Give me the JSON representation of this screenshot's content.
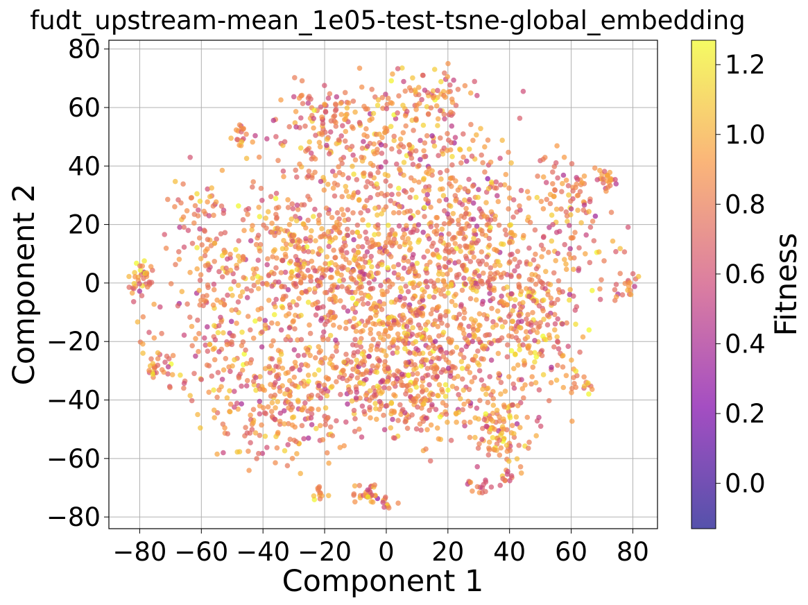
{
  "chart_data": {
    "type": "scatter",
    "title": "fudt_upstream-mean_1e05-test-tsne-global_embedding",
    "xlabel": "Component 1",
    "ylabel": "Component 2",
    "xlim": [
      -90,
      88
    ],
    "ylim": [
      -84,
      83
    ],
    "xticks": [
      -80,
      -60,
      -40,
      -20,
      0,
      20,
      40,
      60,
      80
    ],
    "yticks": [
      -80,
      -60,
      -40,
      -20,
      0,
      20,
      40,
      60,
      80
    ],
    "xtick_labels": [
      "−80",
      "−60",
      "−40",
      "−20",
      "0",
      "20",
      "40",
      "60",
      "80"
    ],
    "ytick_labels": [
      "−80",
      "−60",
      "−40",
      "−20",
      "0",
      "20",
      "40",
      "60",
      "80"
    ],
    "grid": true,
    "colorbar": {
      "label": "Fitness",
      "colormap": "plasma",
      "range": [
        -0.13,
        1.27
      ],
      "ticks": [
        0.0,
        0.2,
        0.4,
        0.6,
        0.8,
        1.0,
        1.2
      ],
      "tick_labels": [
        "0.0",
        "0.2",
        "0.4",
        "0.6",
        "0.8",
        "1.0",
        "1.2"
      ]
    },
    "point_alpha": 0.7,
    "clusters": [
      {
        "center": [
          -2,
          48
        ],
        "spread": [
          15,
          12
        ],
        "count": 260
      },
      {
        "center": [
          -32,
          12
        ],
        "spread": [
          14,
          13
        ],
        "count": 280
      },
      {
        "center": [
          25,
          20
        ],
        "spread": [
          16,
          14
        ],
        "count": 320
      },
      {
        "center": [
          45,
          0
        ],
        "spread": [
          14,
          12
        ],
        "count": 220
      },
      {
        "center": [
          -35,
          -40
        ],
        "spread": [
          12,
          10
        ],
        "count": 260
      },
      {
        "center": [
          0,
          -35
        ],
        "spread": [
          11,
          10
        ],
        "count": 220
      },
      {
        "center": [
          22,
          -30
        ],
        "spread": [
          12,
          10
        ],
        "count": 180
      },
      {
        "center": [
          -10,
          0
        ],
        "spread": [
          16,
          15
        ],
        "count": 380
      },
      {
        "center": [
          10,
          -10
        ],
        "spread": [
          18,
          15
        ],
        "count": 300
      },
      {
        "center": [
          -55,
          -10
        ],
        "spread": [
          8,
          14
        ],
        "count": 110
      },
      {
        "center": [
          -78,
          -30
        ],
        "spread": [
          5,
          7
        ],
        "count": 90
      },
      {
        "center": [
          -80,
          2
        ],
        "spread": [
          2.5,
          3
        ],
        "count": 40
      },
      {
        "center": [
          37,
          -52
        ],
        "spread": [
          5,
          6
        ],
        "count": 90
      },
      {
        "center": [
          72,
          36
        ],
        "spread": [
          2,
          2
        ],
        "count": 25
      },
      {
        "center": [
          78,
          -2
        ],
        "spread": [
          2,
          3
        ],
        "count": 20
      },
      {
        "center": [
          -7,
          -72
        ],
        "spread": [
          3,
          1.5
        ],
        "count": 30
      },
      {
        "center": [
          32,
          -71
        ],
        "spread": [
          2.5,
          1.5
        ],
        "count": 20
      },
      {
        "center": [
          -22,
          -72
        ],
        "spread": [
          1.5,
          1.5
        ],
        "count": 12
      },
      {
        "center": [
          39,
          -67
        ],
        "spread": [
          1.5,
          1.5
        ],
        "count": 10
      },
      {
        "center": [
          -47,
          51
        ],
        "spread": [
          2,
          2
        ],
        "count": 18
      },
      {
        "center": [
          64,
          -35
        ],
        "spread": [
          2,
          2
        ],
        "count": 14
      },
      {
        "center": [
          0,
          -75
        ],
        "spread": [
          1.5,
          1
        ],
        "count": 10
      },
      {
        "center": [
          60,
          30
        ],
        "spread": [
          5,
          8
        ],
        "count": 60
      },
      {
        "center": [
          15,
          65
        ],
        "spread": [
          6,
          5
        ],
        "count": 50
      },
      {
        "center": [
          -20,
          55
        ],
        "spread": [
          6,
          6
        ],
        "count": 60
      },
      {
        "center": [
          50,
          -20
        ],
        "spread": [
          8,
          8
        ],
        "count": 80
      },
      {
        "center": [
          -60,
          20
        ],
        "spread": [
          5,
          8
        ],
        "count": 50
      }
    ]
  }
}
